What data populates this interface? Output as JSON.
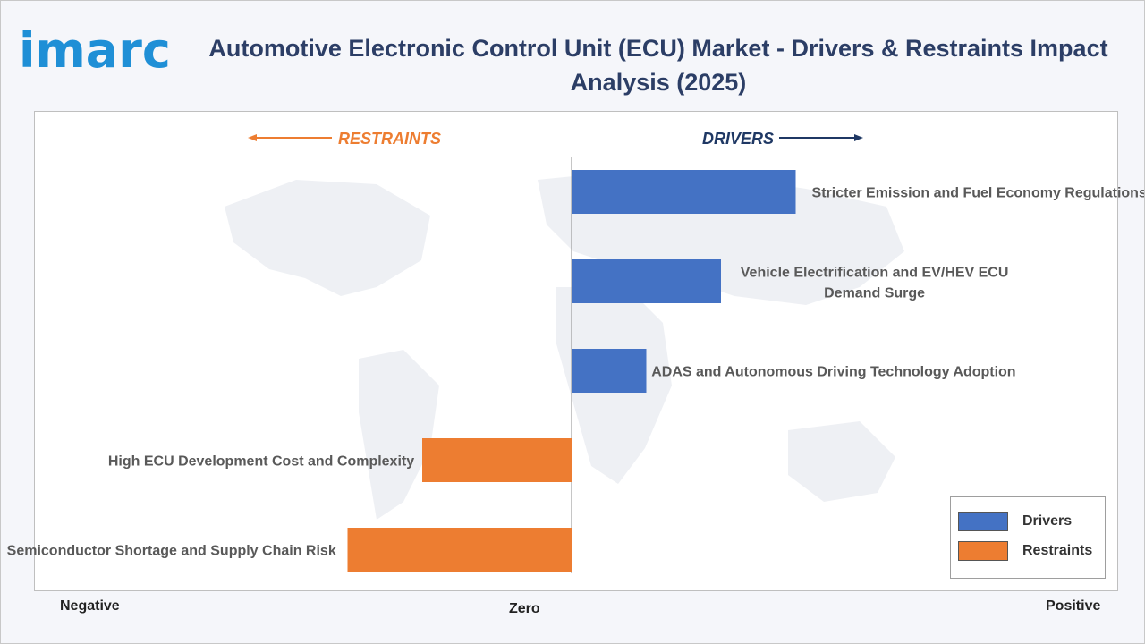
{
  "logo": {
    "text": "imarc"
  },
  "title": "Automotive Electronic Control Unit (ECU) Market - Drivers & Restraints Impact Analysis (2025)",
  "direction_labels": {
    "restraints": "RESTRAINTS",
    "drivers": "DRIVERS"
  },
  "axis_labels": {
    "negative": "Negative",
    "zero": "Zero",
    "positive": "Positive"
  },
  "legend": {
    "drivers": "Drivers",
    "restraints": "Restraints"
  },
  "colors": {
    "drivers": "#4472c4",
    "restraints": "#ed7d31",
    "title": "#2c3e66",
    "restraints_text": "#ed7d31",
    "drivers_text": "#1f3864"
  },
  "chart_data": {
    "type": "bar",
    "orientation": "horizontal",
    "xlim": [
      -3,
      6
    ],
    "series": [
      {
        "name": "Drivers",
        "items": [
          {
            "label": "Stricter Emission and Fuel Economy Regulations",
            "value": 3.0
          },
          {
            "label": "Vehicle Electrification and EV/HEV ECU Demand Surge",
            "value": 2.0
          },
          {
            "label": "ADAS and Autonomous Driving Technology Adoption",
            "value": 1.0
          }
        ]
      },
      {
        "name": "Restraints",
        "items": [
          {
            "label": "High ECU Development Cost and Complexity",
            "value": -2.0
          },
          {
            "label": "Semiconductor Shortage and Supply Chain Risk",
            "value": -3.0
          }
        ]
      }
    ],
    "legend_position": "bottom-right",
    "grid": false
  }
}
